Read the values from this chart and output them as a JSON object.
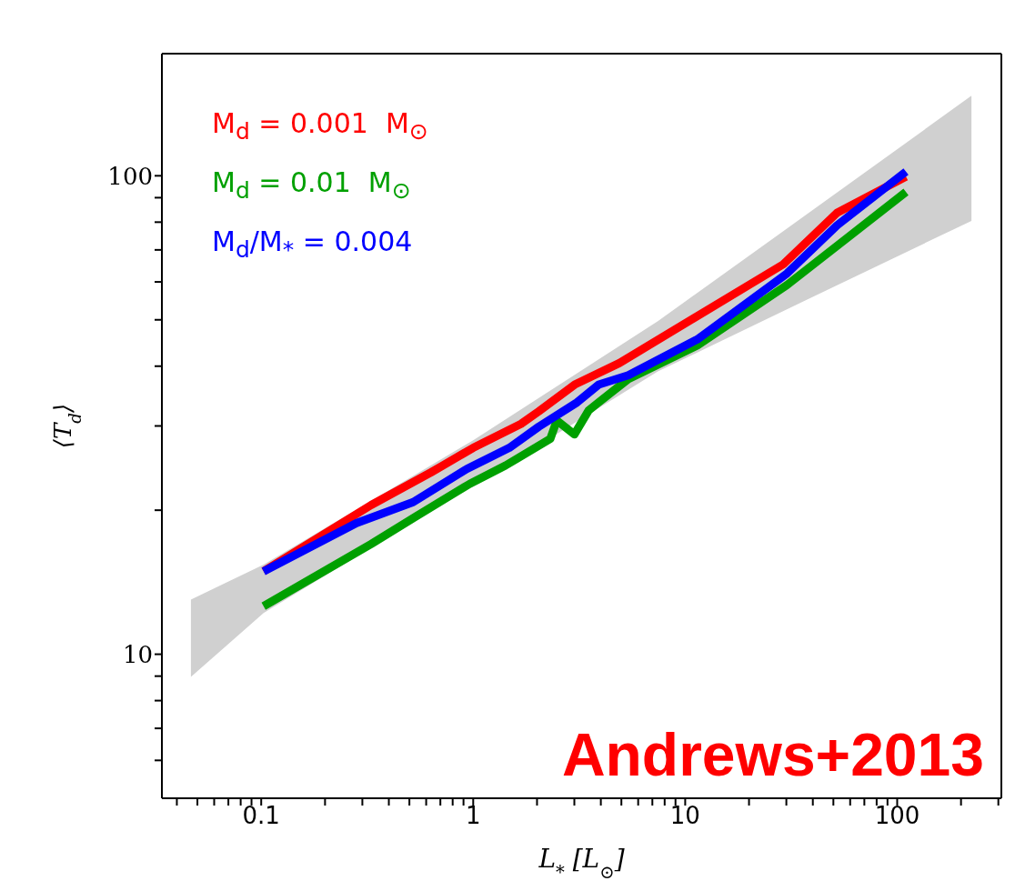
{
  "chart_data": {
    "type": "line",
    "xlabel": "L$_{*}$  [L$_{⊙}$]",
    "ylabel": "⟨T$_{d}$⟩",
    "log": "xy",
    "legend": "top left",
    "marker": "none",
    "line_style": "solid",
    "xlim": [
      0.034,
      310
    ],
    "ylim": [
      5,
      180
    ],
    "xticks": [
      {
        "value": 0.04,
        "label": null
      },
      {
        "value": 0.05,
        "label": null
      },
      {
        "value": 0.06,
        "label": null
      },
      {
        "value": 0.07,
        "label": null
      },
      {
        "value": 0.08,
        "label": null
      },
      {
        "value": 0.09,
        "label": null
      },
      0.1,
      {
        "value": 0.2,
        "label": null
      },
      {
        "value": 0.3,
        "label": null
      },
      {
        "value": 0.4,
        "label": null
      },
      {
        "value": 0.5,
        "label": null
      },
      {
        "value": 0.6,
        "label": null
      },
      {
        "value": 0.7,
        "label": null
      },
      {
        "value": 0.8,
        "label": null
      },
      {
        "value": 0.9,
        "label": null
      },
      1,
      {
        "value": 2,
        "label": null
      },
      {
        "value": 3,
        "label": null
      },
      {
        "value": 4,
        "label": null
      },
      {
        "value": 5,
        "label": null
      },
      {
        "value": 6,
        "label": null
      },
      {
        "value": 7,
        "label": null
      },
      {
        "value": 8,
        "label": null
      },
      {
        "value": 9,
        "label": null
      },
      10,
      {
        "value": 20,
        "label": null
      },
      {
        "value": 30,
        "label": null
      },
      {
        "value": 40,
        "label": null
      },
      {
        "value": 50,
        "label": null
      },
      {
        "value": 60,
        "label": null
      },
      {
        "value": 70,
        "label": null
      },
      {
        "value": 80,
        "label": null
      },
      {
        "value": 90,
        "label": null
      },
      100,
      {
        "value": 200,
        "label": null
      },
      {
        "value": 300,
        "label": null
      }
    ],
    "yticks": [
      {
        "value": 6,
        "label": null
      },
      {
        "value": 7,
        "label": null
      },
      {
        "value": 8,
        "label": null
      },
      {
        "value": 9,
        "label": null
      },
      10,
      {
        "value": 20,
        "label": null
      },
      {
        "value": 30,
        "label": null
      },
      {
        "value": 40,
        "label": null
      },
      {
        "value": 50,
        "label": null
      },
      {
        "value": 60,
        "label": null
      },
      {
        "value": 70,
        "label": null
      },
      {
        "value": 80,
        "label": null
      },
      {
        "value": 90,
        "label": null
      },
      100
    ],
    "series": [
      {
        "type": "area",
        "color": "#d0d0d0",
        "x": [
          0.0466,
          0.1026,
          1.0,
          7.43,
          37.8,
          224
        ],
        "values": [
          null,
          null,
          null,
          null,
          null,
          null
        ],
        "lower": [
          8.97,
          12.2,
          22.5,
          39.0,
          55.2,
          80.5
        ],
        "upper": [
          13.0,
          15.4,
          28.0,
          49.7,
          83.3,
          147
        ]
      },
      {
        "name": "M$_{d}$ = 0.001  M$_{⊙}$",
        "color": "#ff0000",
        "x": [
          0.1026,
          0.33,
          0.633,
          1.0,
          1.68,
          2.04,
          3.01,
          4.89,
          11.0,
          29.0,
          52.1,
          110
        ],
        "values": [
          14.9,
          20.5,
          24.0,
          27.0,
          30.3,
          32.2,
          36.6,
          40.6,
          50.4,
          65.3,
          83.7,
          99.6
        ]
      },
      {
        "name": "M$_{d}$ = 0.01  M$_{⊙}$",
        "color": "#00a000",
        "x": [
          0.1026,
          0.33,
          0.536,
          0.962,
          1.42,
          2.31,
          2.48,
          3.0,
          3.5,
          3.91,
          5.39,
          11.4,
          30.2,
          110
        ],
        "values": [
          12.6,
          17.0,
          19.4,
          22.7,
          24.8,
          28.2,
          30.8,
          28.8,
          32.3,
          33.6,
          37.6,
          44.2,
          59.1,
          92.5
        ]
      },
      {
        "name": "M$_{d}$/M$_{*}$ = 0.004",
        "color": "#0000ff",
        "x": [
          0.1026,
          0.282,
          0.521,
          0.934,
          1.48,
          2.04,
          3.09,
          3.91,
          5.39,
          11.4,
          30.2,
          52.1,
          110
        ],
        "values": [
          14.9,
          18.8,
          20.8,
          24.4,
          27.0,
          29.9,
          33.6,
          36.6,
          38.3,
          45.5,
          62.5,
          78.8,
          102
        ]
      }
    ],
    "annotations": [
      "Andrews+2013"
    ]
  }
}
